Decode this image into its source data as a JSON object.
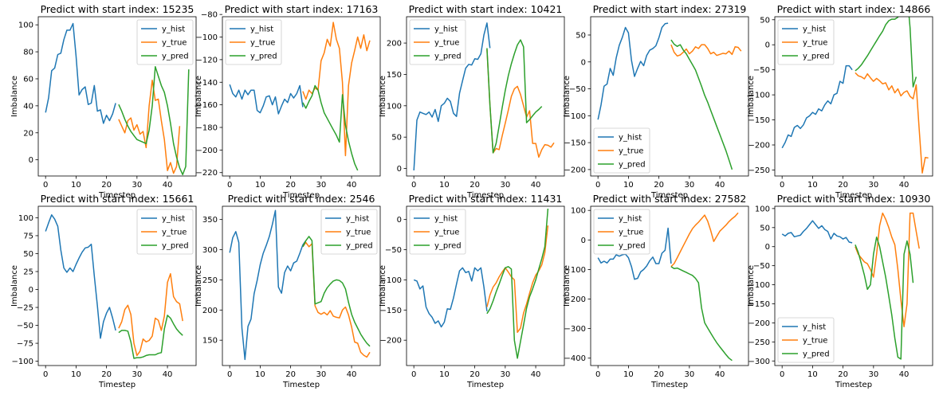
{
  "colors": {
    "y_hist": "#1f77b4",
    "y_true": "#ff7f0e",
    "y_pred": "#2ca02c"
  },
  "chart_data": [
    {
      "type": "line",
      "title": "Predict with start index: 15235",
      "xlabel": "Timestep",
      "ylabel": "Imbalance",
      "xlim": [
        -2.4,
        49.4
      ],
      "ylim": [
        -12,
        106
      ],
      "xticks": [
        0,
        10,
        20,
        30,
        40
      ],
      "yticks": [
        0,
        20,
        40,
        60,
        80,
        100
      ],
      "legend": "top-right",
      "series": [
        {
          "name": "y_hist",
          "x_start": 0,
          "values": [
            35,
            46,
            66,
            68,
            78,
            79,
            89,
            96,
            96,
            101,
            77,
            48,
            52,
            54,
            41,
            42,
            55,
            36,
            37,
            27,
            33,
            29,
            34,
            42
          ]
        },
        {
          "name": "y_true",
          "x_start": 24,
          "values": [
            30,
            25,
            20,
            29,
            31,
            22,
            26,
            19,
            21,
            9,
            40,
            59,
            44,
            45,
            29,
            15,
            -8,
            -2,
            -10,
            -5,
            25
          ]
        },
        {
          "name": "y_pred",
          "x_start": 24,
          "values": [
            41,
            36,
            30,
            25,
            21,
            18,
            15,
            14,
            13,
            12,
            22,
            40,
            69,
            62,
            55,
            50,
            40,
            27,
            12,
            2,
            -6,
            -11,
            -5,
            67
          ]
        }
      ]
    },
    {
      "type": "line",
      "title": "Predict with start index: 17163",
      "xlabel": "Timestep",
      "ylabel": "Imbalance",
      "xlim": [
        -2.4,
        49.4
      ],
      "ylim": [
        -223,
        -82
      ],
      "xticks": [
        0,
        10,
        20,
        30,
        40
      ],
      "yticks": [
        -220,
        -200,
        -180,
        -160,
        -140,
        -120,
        -100,
        -80
      ],
      "legend": "top-left",
      "series": [
        {
          "name": "y_hist",
          "x_start": 0,
          "values": [
            -142,
            -150,
            -153,
            -147,
            -155,
            -147,
            -151,
            -147,
            -147,
            -165,
            -167,
            -161,
            -153,
            -152,
            -160,
            -153,
            -168,
            -161,
            -155,
            -158,
            -150,
            -154,
            -150,
            -143,
            -162
          ]
        },
        {
          "name": "y_true",
          "x_start": 24,
          "values": [
            -148,
            -155,
            -147,
            -150,
            -145,
            -147,
            -121,
            -114,
            -102,
            -108,
            -87,
            -102,
            -110,
            -140,
            -205,
            -143,
            -123,
            -112,
            -100,
            -110,
            -98,
            -112,
            -103
          ]
        },
        {
          "name": "y_pred",
          "x_start": 24,
          "values": [
            -158,
            -163,
            -157,
            -152,
            -143,
            -147,
            -158,
            -167,
            -172,
            -177,
            -182,
            -187,
            -193,
            -151,
            -178,
            -192,
            -203,
            -212,
            -218
          ]
        }
      ]
    },
    {
      "type": "line",
      "title": "Predict with start index: 10421",
      "xlabel": "Timestep",
      "ylabel": "Imbalance",
      "xlim": [
        -2.4,
        49.4
      ],
      "ylim": [
        -12,
        242
      ],
      "xticks": [
        0,
        10,
        20,
        30,
        40
      ],
      "yticks": [
        0,
        50,
        100,
        150,
        200
      ],
      "legend": "top-left",
      "series": [
        {
          "name": "y_hist",
          "x_start": 0,
          "values": [
            -3,
            77,
            90,
            88,
            86,
            90,
            82,
            94,
            75,
            100,
            104,
            112,
            107,
            88,
            83,
            120,
            140,
            160,
            166,
            165,
            175,
            174,
            183,
            213,
            232,
            192
          ]
        },
        {
          "name": "y_true",
          "x_start": 24,
          "values": [
            190,
            100,
            25,
            32,
            30,
            52,
            72,
            93,
            115,
            127,
            131,
            118,
            100,
            82,
            92,
            40,
            40,
            18,
            30,
            38,
            37,
            34,
            41
          ]
        },
        {
          "name": "y_pred",
          "x_start": 24,
          "values": [
            192,
            100,
            25,
            40,
            68,
            97,
            124,
            148,
            167,
            183,
            197,
            205,
            194,
            73,
            78,
            84,
            90,
            94,
            99
          ]
        }
      ]
    },
    {
      "type": "line",
      "title": "Predict with start index: 27319",
      "xlabel": "Timestep",
      "ylabel": "Imbalance",
      "xlim": [
        -2.4,
        49.4
      ],
      "ylim": [
        -212,
        84
      ],
      "xticks": [
        0,
        10,
        20,
        30,
        40
      ],
      "yticks": [
        -200,
        -150,
        -100,
        -50,
        0,
        50
      ],
      "legend": "bottom-left",
      "series": [
        {
          "name": "y_hist",
          "x_start": 0,
          "values": [
            -107,
            -80,
            -45,
            -41,
            -12,
            -25,
            8,
            31,
            46,
            64,
            54,
            3,
            -27,
            -12,
            1,
            -7,
            12,
            22,
            25,
            30,
            45,
            64,
            71,
            72
          ]
        },
        {
          "name": "y_true",
          "x_start": 24,
          "values": [
            32,
            18,
            11,
            13,
            18,
            24,
            15,
            20,
            28,
            25,
            32,
            32,
            25,
            15,
            18,
            12,
            14,
            16,
            15,
            20,
            14,
            28,
            27,
            20
          ]
        },
        {
          "name": "y_pred",
          "x_start": 24,
          "values": [
            41,
            33,
            29,
            32,
            22,
            15,
            5,
            -5,
            -15,
            -30,
            -45,
            -62,
            -75,
            -90,
            -105,
            -120,
            -135,
            -150,
            -165,
            -182,
            -200
          ]
        }
      ]
    },
    {
      "type": "line",
      "title": "Predict with start index: 14866",
      "xlabel": "Timestep",
      "ylabel": "Imbalance",
      "xlim": [
        -2.4,
        49.4
      ],
      "ylim": [
        -262,
        56
      ],
      "xticks": [
        0,
        10,
        20,
        30,
        40
      ],
      "yticks": [
        -250,
        -200,
        -150,
        -100,
        -50,
        0,
        50
      ],
      "legend": "top-left",
      "series": [
        {
          "name": "y_hist",
          "x_start": 0,
          "values": [
            -206,
            -195,
            -180,
            -183,
            -165,
            -161,
            -167,
            -160,
            -146,
            -142,
            -135,
            -139,
            -128,
            -132,
            -120,
            -112,
            -118,
            -100,
            -97,
            -73,
            -77,
            -42,
            -42,
            -50
          ]
        },
        {
          "name": "y_true",
          "x_start": 24,
          "values": [
            -56,
            -62,
            -64,
            -68,
            -58,
            -66,
            -73,
            -67,
            -72,
            -78,
            -76,
            -90,
            -82,
            -96,
            -88,
            -102,
            -95,
            -92,
            -103,
            -108,
            -80,
            -170,
            -256,
            -225,
            -226
          ]
        },
        {
          "name": "y_pred",
          "x_start": 24,
          "values": [
            -52,
            -47,
            -40,
            -31,
            -22,
            -12,
            -2,
            8,
            18,
            27,
            40,
            48,
            51,
            51,
            55,
            65,
            82,
            104,
            34,
            -84,
            -64
          ]
        }
      ]
    },
    {
      "type": "line",
      "title": "Predict with start index: 15661",
      "xlabel": "Timestep",
      "ylabel": "Imbalance",
      "xlim": [
        -2.4,
        49.4
      ],
      "ylim": [
        -106,
        116
      ],
      "xticks": [
        0,
        10,
        20,
        30,
        40
      ],
      "yticks": [
        -100,
        -75,
        -50,
        -25,
        0,
        25,
        50,
        75,
        100
      ],
      "legend": "top-right",
      "series": [
        {
          "name": "y_hist",
          "x_start": 0,
          "values": [
            81,
            93,
            104,
            98,
            88,
            55,
            30,
            24,
            30,
            25,
            35,
            44,
            52,
            58,
            59,
            63,
            19,
            -23,
            -68,
            -45,
            -33,
            -25,
            -40,
            -57
          ]
        },
        {
          "name": "y_true",
          "x_start": 24,
          "values": [
            -54,
            -45,
            -28,
            -22,
            -35,
            -75,
            -92,
            -86,
            -69,
            -73,
            -71,
            -65,
            -40,
            -43,
            -57,
            -37,
            10,
            22,
            -10,
            -17,
            -20,
            -44
          ]
        },
        {
          "name": "y_pred",
          "x_start": 24,
          "values": [
            -60,
            -57,
            -57,
            -58,
            -73,
            -96,
            -95,
            -95,
            -94,
            -92,
            -91,
            -91,
            -91,
            -89,
            -88,
            -55,
            -36,
            -40,
            -48,
            -55,
            -60,
            -64
          ]
        }
      ]
    },
    {
      "type": "line",
      "title": "Predict with start index: 2546",
      "xlabel": "Timestep",
      "ylabel": "Imbalance",
      "xlim": [
        -2.4,
        49.4
      ],
      "ylim": [
        108,
        372
      ],
      "xticks": [
        0,
        10,
        20,
        30,
        40
      ],
      "yticks": [
        150,
        200,
        250,
        300,
        350
      ],
      "legend": "top-right",
      "series": [
        {
          "name": "y_hist",
          "x_start": 0,
          "values": [
            295,
            320,
            330,
            312,
            170,
            118,
            173,
            185,
            227,
            249,
            275,
            294,
            307,
            322,
            342,
            365,
            238,
            228,
            262,
            273,
            265,
            278,
            281,
            294,
            308,
            315
          ]
        },
        {
          "name": "y_true",
          "x_start": 24,
          "values": [
            305,
            312,
            305,
            310,
            207,
            196,
            193,
            196,
            192,
            199,
            190,
            188,
            187,
            200,
            205,
            192,
            172,
            147,
            145,
            130,
            125,
            122,
            130
          ]
        },
        {
          "name": "y_pred",
          "x_start": 24,
          "values": [
            305,
            315,
            322,
            315,
            210,
            212,
            214,
            228,
            237,
            243,
            248,
            250,
            249,
            245,
            235,
            213,
            193,
            180,
            170,
            160,
            152,
            145,
            140
          ]
        }
      ]
    },
    {
      "type": "line",
      "title": "Predict with start index: 11431",
      "xlabel": "Timestep",
      "ylabel": "Imbalance",
      "xlim": [
        -2.4,
        49.4
      ],
      "ylim": [
        -242,
        22
      ],
      "xticks": [
        0,
        10,
        20,
        30,
        40
      ],
      "yticks": [
        -200,
        -150,
        -100,
        -50,
        0
      ],
      "legend": "top-left",
      "series": [
        {
          "name": "y_hist",
          "x_start": 0,
          "values": [
            -100,
            -102,
            -115,
            -110,
            -145,
            -156,
            -162,
            -172,
            -168,
            -178,
            -170,
            -148,
            -149,
            -130,
            -107,
            -85,
            -80,
            -88,
            -86,
            -102,
            -80,
            -85,
            -80,
            -112,
            -152
          ]
        },
        {
          "name": "y_true",
          "x_start": 24,
          "values": [
            -145,
            -125,
            -112,
            -105,
            -95,
            -87,
            -80,
            -87,
            -95,
            -100,
            -187,
            -180,
            -155,
            -140,
            -122,
            -105,
            -92,
            -85,
            -75,
            -55,
            -10
          ]
        },
        {
          "name": "y_pred",
          "x_start": 24,
          "values": [
            -156,
            -148,
            -135,
            -120,
            -107,
            -93,
            -80,
            -78,
            -82,
            -200,
            -230,
            -202,
            -175,
            -147,
            -128,
            -115,
            -100,
            -82,
            -65,
            -45,
            18
          ]
        }
      ]
    },
    {
      "type": "line",
      "title": "Predict with start index: 27582",
      "xlabel": "Timestep",
      "ylabel": "Imbalance",
      "xlim": [
        -2.4,
        49.4
      ],
      "ylim": [
        -425,
        114
      ],
      "xticks": [
        0,
        10,
        20,
        30,
        40
      ],
      "yticks": [
        -400,
        -300,
        -200,
        -100,
        0,
        100
      ],
      "legend": "top-left",
      "series": [
        {
          "name": "y_hist",
          "x_start": 0,
          "values": [
            -60,
            -78,
            -72,
            -78,
            -65,
            -65,
            -50,
            -55,
            -50,
            -48,
            -60,
            -90,
            -133,
            -130,
            -108,
            -100,
            -88,
            -70,
            -58,
            -80,
            -80,
            -45,
            -35,
            40,
            -80
          ]
        },
        {
          "name": "y_true",
          "x_start": 24,
          "values": [
            -90,
            -80,
            -60,
            -40,
            -20,
            0,
            20,
            38,
            50,
            60,
            72,
            84,
            64,
            32,
            -5,
            12,
            30,
            40,
            50,
            62,
            72,
            80,
            92
          ]
        },
        {
          "name": "y_pred",
          "x_start": 24,
          "values": [
            -90,
            -97,
            -95,
            -100,
            -105,
            -110,
            -115,
            -120,
            -130,
            -145,
            -230,
            -280,
            -298,
            -315,
            -332,
            -348,
            -362,
            -375,
            -388,
            -400,
            -408
          ]
        }
      ]
    },
    {
      "type": "line",
      "title": "Predict with start index: 10930",
      "xlabel": "Timestep",
      "ylabel": "Imbalance",
      "xlim": [
        -2.4,
        49.4
      ],
      "ylim": [
        -312,
        106
      ],
      "xticks": [
        0,
        10,
        20,
        30,
        40
      ],
      "yticks": [
        -300,
        -250,
        -200,
        -150,
        -100,
        -50,
        0,
        50,
        100
      ],
      "legend": "bottom-left",
      "series": [
        {
          "name": "y_hist",
          "x_start": 0,
          "values": [
            33,
            28,
            35,
            37,
            26,
            28,
            30,
            40,
            48,
            58,
            68,
            58,
            48,
            55,
            45,
            40,
            20,
            35,
            28,
            26,
            20,
            24,
            12,
            10
          ]
        },
        {
          "name": "y_true",
          "x_start": 24,
          "values": [
            0,
            -20,
            -30,
            -40,
            -45,
            -60,
            -80,
            -20,
            55,
            88,
            72,
            50,
            25,
            5,
            -60,
            -140,
            -210,
            -150,
            88,
            88,
            40,
            -5
          ]
        },
        {
          "name": "y_pred",
          "x_start": 24,
          "values": [
            5,
            -15,
            -45,
            -75,
            -112,
            -100,
            -20,
            25,
            0,
            -40,
            -80,
            -130,
            -180,
            -240,
            -290,
            -295,
            -20,
            15,
            -20,
            -95
          ]
        }
      ]
    }
  ]
}
